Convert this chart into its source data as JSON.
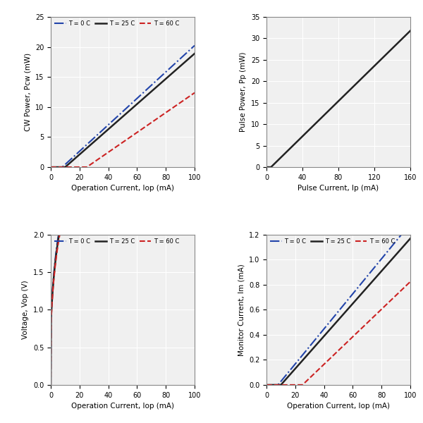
{
  "fig_bg": "#ffffff",
  "plot_bg": "#f0f0f0",
  "grid_color": "#ffffff",
  "colors": {
    "T0": "#2244aa",
    "T25": "#222222",
    "T60": "#cc2222"
  },
  "ax1": {
    "xlabel": "Operation Current, Iop (mA)",
    "ylabel": "CW Power, Pcw (mW)",
    "xlim": [
      0,
      100
    ],
    "ylim": [
      0,
      25
    ],
    "xticks": [
      0,
      20,
      40,
      60,
      80,
      100
    ],
    "yticks": [
      0,
      5,
      10,
      15,
      20,
      25
    ]
  },
  "ax2": {
    "xlabel": "Pulse Current, Ip (mA)",
    "ylabel": "Pulse Power, Pp (mW)",
    "xlim": [
      0,
      160
    ],
    "ylim": [
      0,
      35
    ],
    "xticks": [
      0,
      40,
      80,
      120,
      160
    ],
    "yticks": [
      0,
      5,
      10,
      15,
      20,
      25,
      30,
      35
    ]
  },
  "ax3": {
    "xlabel": "Operation Current, Iop (mA)",
    "ylabel": "Voltage, Vop (V)",
    "xlim": [
      0,
      100
    ],
    "ylim": [
      0.0,
      2.0
    ],
    "xticks": [
      0,
      20,
      40,
      60,
      80,
      100
    ],
    "yticks": [
      0.0,
      0.5,
      1.0,
      1.5,
      2.0
    ]
  },
  "ax4": {
    "xlabel": "Operation Current, Iop (mA)",
    "ylabel": "Monitor Current, Im (mA)",
    "xlim": [
      0,
      100
    ],
    "ylim": [
      0,
      1.2
    ],
    "xticks": [
      0,
      20,
      40,
      60,
      80,
      100
    ],
    "yticks": [
      0,
      0.2,
      0.4,
      0.6,
      0.8,
      1.0,
      1.2
    ]
  },
  "legend_labels": [
    "T = 0 C",
    "T = 25 C",
    "T = 60 C"
  ]
}
